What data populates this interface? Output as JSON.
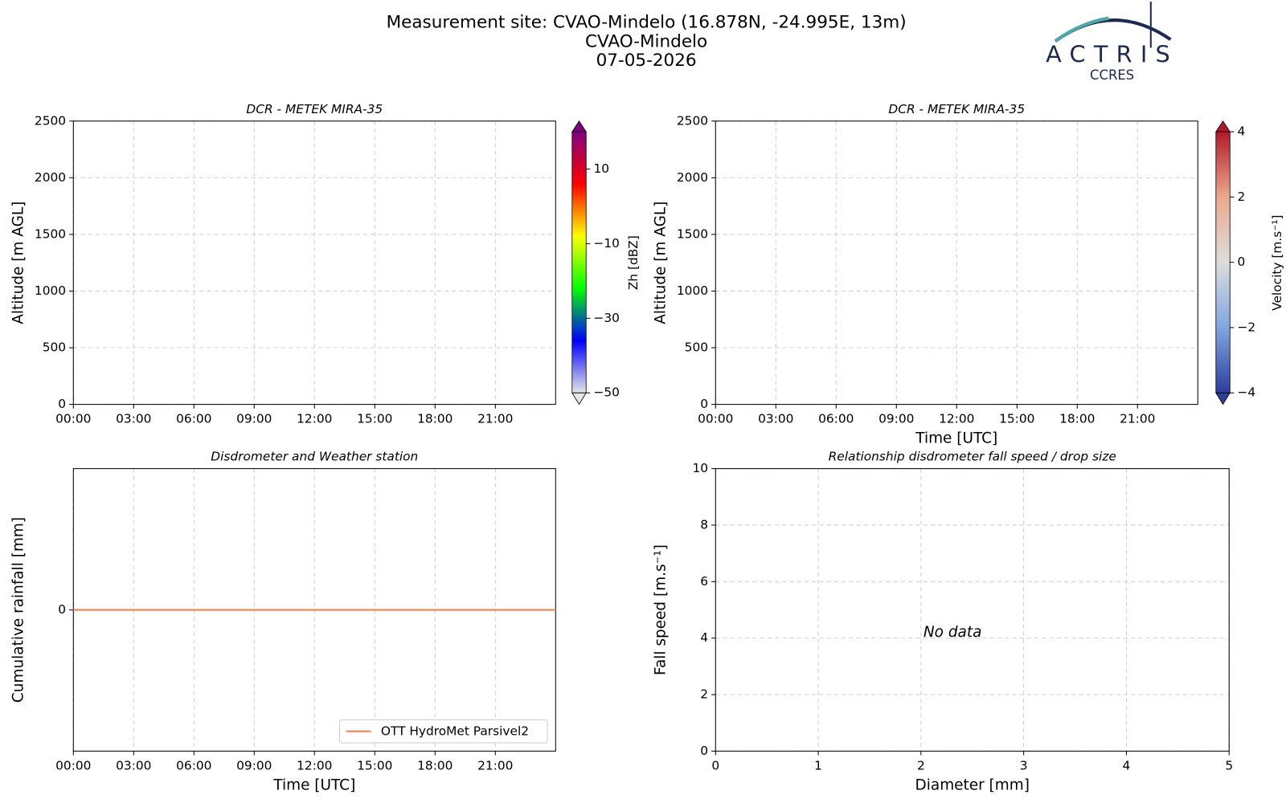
{
  "header": {
    "title": "Measurement site: CVAO-Mindelo (16.878N, -24.995E, 13m)",
    "subtitle": "CVAO-Mindelo",
    "date": "07-05-2026",
    "logo": {
      "name": "ACTRIS",
      "sub": "CCRES"
    }
  },
  "chart_data": [
    {
      "type": "heatmap",
      "title": "DCR - METEK MIRA-35",
      "ylabel": "Altitude [m AGL]",
      "xlim": [
        0,
        24
      ],
      "xticks": [
        {
          "value": 0,
          "label": "00:00"
        },
        {
          "value": 3,
          "label": "03:00"
        },
        {
          "value": 6,
          "label": "06:00"
        },
        {
          "value": 9,
          "label": "09:00"
        },
        {
          "value": 12,
          "label": "12:00"
        },
        {
          "value": 15,
          "label": "15:00"
        },
        {
          "value": 18,
          "label": "18:00"
        },
        {
          "value": 21,
          "label": "21:00"
        }
      ],
      "ylim": [
        0,
        2500
      ],
      "yticks": [
        0,
        500,
        1000,
        1500,
        2000,
        2500
      ],
      "grid": true,
      "colorbar": {
        "label": "Zh [dBZ]",
        "lim": [
          -50,
          20
        ],
        "ticks": [
          {
            "value": -50,
            "label": "−50"
          },
          {
            "value": -30,
            "label": "−30"
          },
          {
            "value": -10,
            "label": "−10"
          },
          10
        ],
        "colors": [
          "#e6e6e6",
          "#0000ff",
          "#00ff00",
          "#ffff00",
          "#ff0000",
          "#800080"
        ]
      }
    },
    {
      "type": "heatmap",
      "title": "DCR - METEK MIRA-35",
      "ylabel": "Altitude [m AGL]",
      "xlabel": "Time [UTC]",
      "xlim": [
        0,
        24
      ],
      "xticks": [
        {
          "value": 0,
          "label": "00:00"
        },
        {
          "value": 3,
          "label": "03:00"
        },
        {
          "value": 6,
          "label": "06:00"
        },
        {
          "value": 9,
          "label": "09:00"
        },
        {
          "value": 12,
          "label": "12:00"
        },
        {
          "value": 15,
          "label": "15:00"
        },
        {
          "value": 18,
          "label": "18:00"
        },
        {
          "value": 21,
          "label": "21:00"
        }
      ],
      "ylim": [
        0,
        2500
      ],
      "yticks": [
        0,
        500,
        1000,
        1500,
        2000,
        2500
      ],
      "grid": true,
      "colorbar": {
        "label": "Velocity [m.s⁻¹]",
        "lim": [
          -4,
          4
        ],
        "ticks": [
          {
            "value": -4,
            "label": "−4"
          },
          {
            "value": -2,
            "label": "−2"
          },
          0,
          2,
          4
        ],
        "colors": [
          "#2c3e9e",
          "#7fa6e0",
          "#dddddd",
          "#eba98b",
          "#b2182b"
        ]
      }
    },
    {
      "type": "line",
      "title": "Disdrometer and Weather station",
      "ylabel": "Cumulative rainfall [mm]",
      "xlabel": "Time [UTC]",
      "xlim": [
        0,
        24
      ],
      "xticks": [
        {
          "value": 0,
          "label": "00:00"
        },
        {
          "value": 3,
          "label": "03:00"
        },
        {
          "value": 6,
          "label": "06:00"
        },
        {
          "value": 9,
          "label": "09:00"
        },
        {
          "value": 12,
          "label": "12:00"
        },
        {
          "value": 15,
          "label": "15:00"
        },
        {
          "value": 18,
          "label": "18:00"
        },
        {
          "value": 21,
          "label": "21:00"
        }
      ],
      "ylim": [
        -1,
        1
      ],
      "yticks": [
        0
      ],
      "grid": true,
      "legend": "lower right",
      "x": [
        0,
        24
      ],
      "series": [
        {
          "name": "OTT HydroMet Parsivel2",
          "color": "#ef8a5a",
          "values": [
            0,
            0
          ]
        }
      ]
    },
    {
      "type": "scatter",
      "title": "Relationship disdrometer fall speed / drop size",
      "ylabel": "Fall speed [m.s⁻¹]",
      "xlabel": "Diameter [mm]",
      "xlim": [
        0,
        5
      ],
      "xticks": [
        0,
        1,
        2,
        3,
        4,
        5
      ],
      "ylim": [
        0,
        10
      ],
      "yticks": [
        0,
        2,
        4,
        6,
        8,
        10
      ],
      "grid": true,
      "annotation": "No data"
    }
  ]
}
